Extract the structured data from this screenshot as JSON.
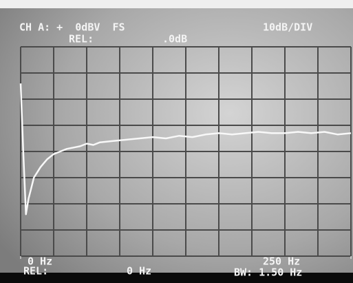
{
  "chart_data": {
    "type": "line",
    "channel_label": "CH A: +  0dBV  FS",
    "scale_label": "10dB/DIV",
    "ref_label": "REL:",
    "ref_value": ".0dB",
    "bottom_ref_label": "REL:",
    "bottom_ref_value": "0 Hz",
    "bandwidth": "BW: 1.50 Hz",
    "color": "#f8f8f8",
    "xlim": [
      0,
      250
    ],
    "ylim": [
      -80,
      0
    ],
    "xticks": [
      {
        "value": 0,
        "label": "0 Hz"
      },
      {
        "value": 250,
        "label": "250 Hz"
      }
    ],
    "x": [
      0,
      2,
      4,
      6,
      8,
      10,
      12.5,
      15,
      17.5,
      20,
      25,
      30,
      35,
      40,
      45,
      50,
      55,
      60,
      70,
      80,
      90,
      100,
      110,
      120,
      130,
      140,
      150,
      160,
      170,
      180,
      190,
      200,
      210,
      220,
      230,
      240,
      250
    ],
    "values": [
      -14,
      -40,
      -64,
      -58,
      -54,
      -50,
      -48,
      -46,
      -44.5,
      -43,
      -41,
      -40,
      -39,
      -38.5,
      -38,
      -37,
      -37.5,
      -36.5,
      -36,
      -35.5,
      -35,
      -34.5,
      -35,
      -34,
      -34.5,
      -33.5,
      -33,
      -33.5,
      -33,
      -32.5,
      -33,
      -33,
      -32.5,
      -33,
      -32.5,
      -33.5,
      -33
    ]
  }
}
